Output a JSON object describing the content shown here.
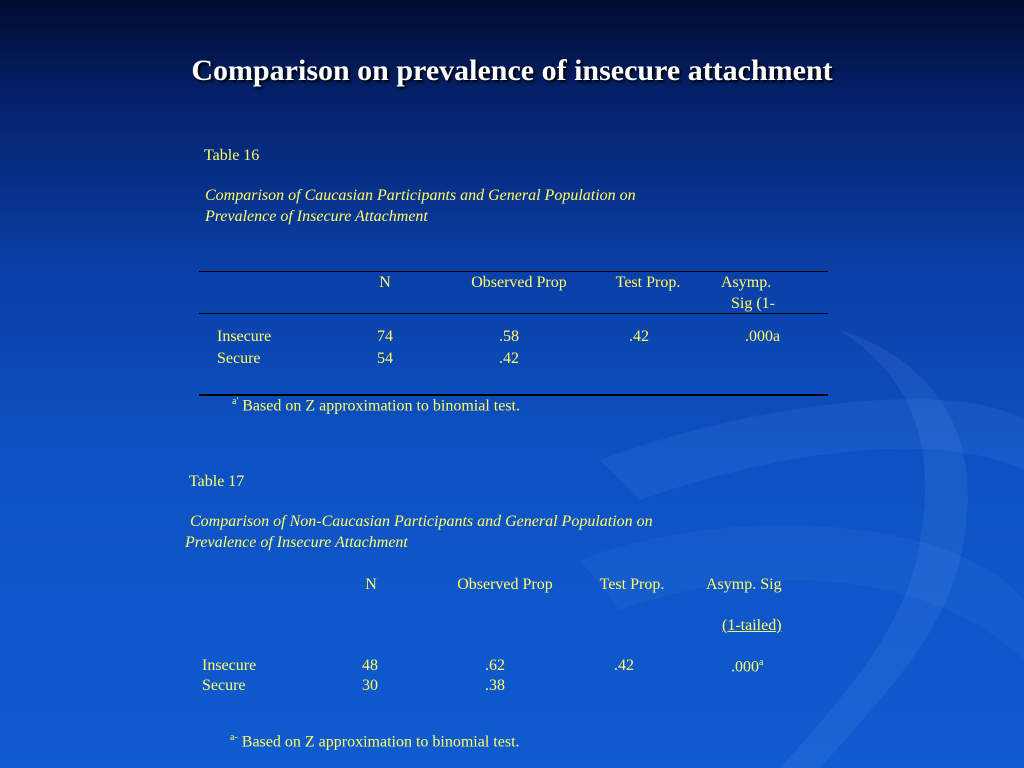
{
  "slide": {
    "title": "Comparison on prevalence of insecure attachment"
  },
  "table16": {
    "label": "Table 16",
    "caption_line1": "Comparison of Caucasian Participants and General Population on",
    "caption_line2": "Prevalence of Insecure Attachment",
    "headers": {
      "n": "N",
      "observed": "Observed Prop",
      "test": "Test Prop.",
      "asymp_line1": "Asymp.",
      "asymp_line2": "Sig (1-"
    },
    "rows": [
      {
        "label": "Insecure",
        "n": "74",
        "observed": ".58",
        "test": ".42",
        "sig": ".000a"
      },
      {
        "label": "Secure",
        "n": "54",
        "observed": ".42",
        "test": "",
        "sig": ""
      }
    ],
    "footnote_mark": "a'",
    "footnote_text": "Based on Z approximation to binomial test."
  },
  "table17": {
    "label": "Table 17",
    "caption_line1": "Comparison of Non-Caucasian Participants and General Population on",
    "caption_line2": "Prevalence of Insecure Attachment",
    "headers": {
      "n": "N",
      "observed": "Observed Prop",
      "test": "Test Prop.",
      "asymp_line1": "Asymp. Sig",
      "asymp_line2": "(1-tailed)"
    },
    "rows": [
      {
        "label": "Insecure",
        "n": "48",
        "observed": ".62",
        "test": ".42",
        "sig": ".000",
        "sig_mark": "a"
      },
      {
        "label": "Secure",
        "n": "30",
        "observed": ".38",
        "test": "",
        "sig": "",
        "sig_mark": ""
      }
    ],
    "footnote_mark": "a-",
    "footnote_text": "Based on Z approximation to binomial test."
  }
}
